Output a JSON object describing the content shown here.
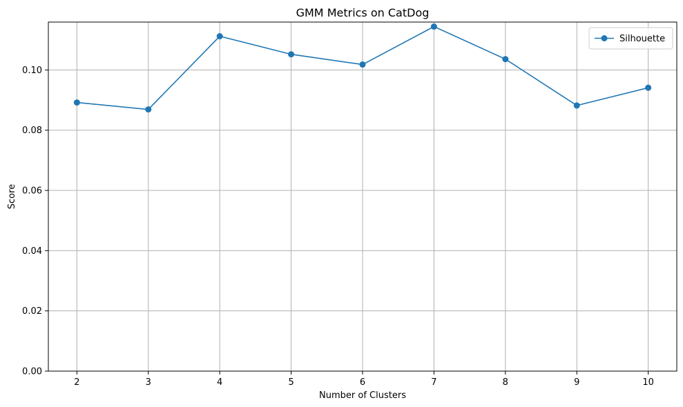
{
  "chart_data": {
    "type": "line",
    "title": "GMM Metrics on CatDog",
    "xlabel": "Number of Clusters",
    "ylabel": "Score",
    "x": [
      2,
      3,
      4,
      5,
      6,
      7,
      8,
      9,
      10
    ],
    "series": [
      {
        "name": "Silhouette",
        "values": [
          0.0892,
          0.0869,
          0.1112,
          0.1052,
          0.1018,
          0.1144,
          0.1036,
          0.0882,
          0.0941
        ],
        "color": "#1f77b4",
        "marker": "circle"
      }
    ],
    "xlim": [
      1.6,
      10.4
    ],
    "ylim": [
      0,
      0.1159
    ],
    "xticks": [
      2,
      3,
      4,
      5,
      6,
      7,
      8,
      9,
      10
    ],
    "xtick_labels": [
      "2",
      "3",
      "4",
      "5",
      "6",
      "7",
      "8",
      "9",
      "10"
    ],
    "yticks": [
      0,
      0.02,
      0.04,
      0.06,
      0.08,
      0.1
    ],
    "ytick_labels": [
      "0.00",
      "0.02",
      "0.04",
      "0.06",
      "0.08",
      "0.10"
    ],
    "grid": true,
    "legend": {
      "position": "top-right",
      "entries": [
        "Silhouette"
      ]
    },
    "colors": {
      "series": "#1f77b4",
      "grid": "#b0b0b0",
      "axis": "#000000"
    }
  }
}
